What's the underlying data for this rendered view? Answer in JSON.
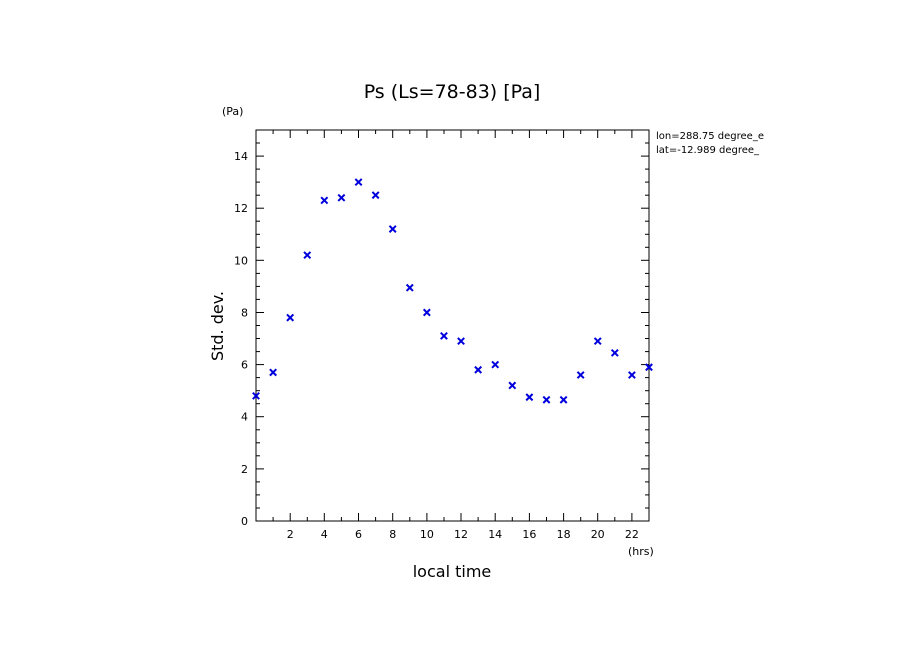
{
  "chart_data": {
    "type": "scatter",
    "title": "Ps (Ls=78-83) [Pa]",
    "xlabel": "local time",
    "ylabel": "Std. dev.",
    "x_unit": "(hrs)",
    "y_unit": "(Pa)",
    "xlim": [
      0,
      23
    ],
    "ylim": [
      0,
      15
    ],
    "x_ticks": [
      2,
      4,
      6,
      8,
      10,
      12,
      14,
      16,
      18,
      20,
      22
    ],
    "y_ticks": [
      0,
      2,
      4,
      6,
      8,
      10,
      12,
      14
    ],
    "marker": "x",
    "marker_color": "#0000dd",
    "annotations": [
      "lon=288.75 degree_e",
      "lat=-12.989 degree_"
    ],
    "series": [
      {
        "name": "Std. dev.",
        "x": [
          0,
          1,
          2,
          3,
          4,
          5,
          6,
          7,
          8,
          9,
          10,
          11,
          12,
          13,
          14,
          15,
          16,
          17,
          18,
          19,
          20,
          21,
          22,
          23
        ],
        "y": [
          4.8,
          5.7,
          7.8,
          10.2,
          12.3,
          12.4,
          13.0,
          12.5,
          11.2,
          8.95,
          8.0,
          7.1,
          6.9,
          5.8,
          6.0,
          5.2,
          4.75,
          4.65,
          4.65,
          5.6,
          6.9,
          6.45,
          5.6,
          5.9
        ]
      }
    ]
  }
}
